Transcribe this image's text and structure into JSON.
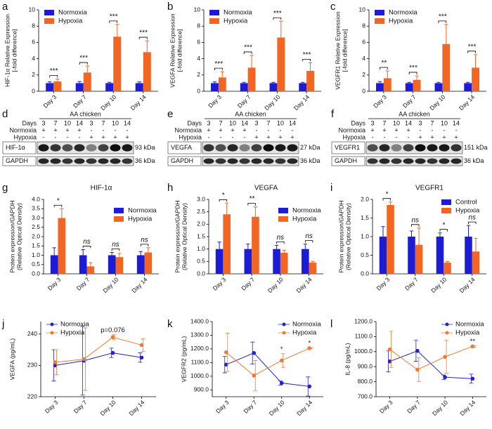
{
  "chart_data": [
    {
      "type": "bar",
      "panel": "a",
      "y_label": [
        "HIF-1α  Relative Expression",
        "[-fold difference]"
      ],
      "categories": [
        "Day 3",
        "Day 7",
        "Day 10",
        "Day 14"
      ],
      "series": [
        {
          "name": "Normoxia",
          "color": "#1c1cd6",
          "values": [
            1,
            1,
            1,
            1
          ],
          "errors": [
            0.15,
            0.2,
            0.1,
            0.15
          ]
        },
        {
          "name": "Hypoxia",
          "color": "#f26522",
          "values": [
            1.2,
            2.3,
            6.7,
            4.8
          ],
          "errors": [
            0.3,
            0.8,
            1.5,
            1.4
          ]
        }
      ],
      "significance": [
        "***",
        "***",
        "***",
        "***"
      ],
      "ylim": [
        0,
        10
      ],
      "yticks": [
        0,
        2,
        4,
        6,
        8,
        10
      ],
      "legend": "upper-left"
    },
    {
      "type": "bar",
      "panel": "b",
      "y_label": [
        "VEGFA  Relative Expression",
        "[-fold difference]"
      ],
      "categories": [
        "Day 3",
        "Day 7",
        "Day 10",
        "Day 14"
      ],
      "series": [
        {
          "name": "Normoxia",
          "color": "#1c1cd6",
          "values": [
            1,
            1,
            1,
            1
          ],
          "errors": [
            0.15,
            0.1,
            0.1,
            0.1
          ]
        },
        {
          "name": "Hypoxia",
          "color": "#f26522",
          "values": [
            1.7,
            2.9,
            6.6,
            2.5
          ],
          "errors": [
            0.7,
            1.5,
            2.0,
            1.0
          ]
        }
      ],
      "significance": [
        "***",
        "***",
        "***",
        "***"
      ],
      "ylim": [
        0,
        10
      ],
      "yticks": [
        0,
        2,
        4,
        6,
        8,
        10
      ],
      "legend": "upper-left"
    },
    {
      "type": "bar",
      "panel": "c",
      "y_label": [
        "VEGFR1  Relative Expression",
        "[-fold difference]"
      ],
      "categories": [
        "Day 3",
        "Day 7",
        "Day 10",
        "Day 14"
      ],
      "series": [
        {
          "name": "Normoxia",
          "color": "#1c1cd6",
          "values": [
            1,
            1,
            1,
            1
          ],
          "errors": [
            0.2,
            0.1,
            0.1,
            0.1
          ]
        },
        {
          "name": "Hypoxia",
          "color": "#f26522",
          "values": [
            1.6,
            1.4,
            5.8,
            2.9
          ],
          "errors": [
            0.9,
            0.5,
            2.4,
            1.6
          ]
        }
      ],
      "significance": [
        "**",
        "***",
        "***",
        "***"
      ],
      "ylim": [
        0,
        10
      ],
      "yticks": [
        0,
        2,
        4,
        6,
        8,
        10
      ],
      "legend": "upper-left"
    },
    {
      "type": "bar",
      "panel": "g",
      "title": "HIF-1α",
      "y_label": [
        "Protein expression/GAPDH",
        "(Relative Optical Density)"
      ],
      "categories": [
        "Day 3",
        "Day 7",
        "Day 10",
        "Day 14"
      ],
      "series": [
        {
          "name": "Normoxia",
          "color": "#1c1cd6",
          "values": [
            1.0,
            1.0,
            1.0,
            1.0
          ],
          "errors": [
            0.4,
            0.3,
            0.15,
            0.2
          ]
        },
        {
          "name": "Hypoxia",
          "color": "#f26522",
          "values": [
            3.0,
            0.4,
            0.9,
            1.15
          ],
          "errors": [
            0.5,
            0.2,
            0.2,
            0.25
          ]
        }
      ],
      "significance": [
        "*",
        "ns",
        "ns",
        "ns"
      ],
      "ylim": [
        0,
        4
      ],
      "yticks": [
        {
          "value": 0,
          "label": "0.0"
        },
        0.5,
        {
          "value": 1,
          "label": "1.0"
        },
        1.5,
        {
          "value": 2,
          "label": "2.0"
        },
        2.5,
        {
          "value": 3,
          "label": "3.0"
        },
        3.5,
        {
          "value": 4,
          "label": "4.0"
        }
      ],
      "legend": "right"
    },
    {
      "type": "bar",
      "panel": "h",
      "title": "VEGFA",
      "y_label": [
        "Protein expression/GAPDH",
        "(Relative Optical Density)"
      ],
      "categories": [
        "Day 3",
        "Day 7",
        "Day 10",
        "Day 14"
      ],
      "series": [
        {
          "name": "Normoxia",
          "color": "#1c1cd6",
          "values": [
            1.0,
            1.0,
            1.0,
            1.0
          ],
          "errors": [
            0.28,
            0.2,
            0.15,
            0.2
          ]
        },
        {
          "name": "Hypoxia",
          "color": "#f26522",
          "values": [
            2.4,
            2.3,
            0.85,
            0.45
          ],
          "errors": [
            0.45,
            0.4,
            0.1,
            0.05
          ]
        }
      ],
      "significance": [
        "*",
        "**",
        "ns",
        "ns"
      ],
      "ylim": [
        0,
        3
      ],
      "yticks": [
        {
          "value": 0,
          "label": "0.0"
        },
        0.5,
        {
          "value": 1,
          "label": "1.0"
        },
        1.5,
        {
          "value": 2,
          "label": "2.0"
        },
        2.5,
        {
          "value": 3,
          "label": "3.0"
        }
      ],
      "legend": "right"
    },
    {
      "type": "bar",
      "panel": "i",
      "title": "VEGFR1",
      "y_label": [
        "Protein expression/GAPDH",
        "(Relative Optical Density)"
      ],
      "categories": [
        "Day 3",
        "Day 7",
        "Day 10",
        "Day 14"
      ],
      "series": [
        {
          "name": "Control",
          "color": "#1c1cd6",
          "values": [
            1.0,
            1.0,
            1.0,
            1.0
          ],
          "errors": [
            0.27,
            0.15,
            0.1,
            0.3
          ]
        },
        {
          "name": "Hypoxia",
          "color": "#f26522",
          "values": [
            1.85,
            0.78,
            0.3,
            0.6
          ],
          "errors": [
            0.08,
            0.45,
            0.03,
            0.35
          ]
        }
      ],
      "significance": [
        "*",
        "ns",
        "*",
        "ns"
      ],
      "ylim": [
        0,
        2
      ],
      "yticks": [
        {
          "value": 0,
          "label": "0.0"
        },
        0.5,
        {
          "value": 1,
          "label": "1.0"
        },
        1.5,
        {
          "value": 2,
          "label": "2.0"
        }
      ],
      "legend": "upper-right"
    },
    {
      "type": "line",
      "panel": "j",
      "y_label": [
        "VEGFA (pg/mL)"
      ],
      "categories": [
        "Day 3",
        "Day 7",
        "Day 10",
        "Day 14"
      ],
      "series": [
        {
          "name": "Normoxia",
          "color": "#2222cc",
          "values": [
            230,
            231.5,
            234,
            232.5
          ],
          "errors": [
            5,
            11,
            1.5,
            1.5
          ]
        },
        {
          "name": "Hypoxia",
          "color": "#f07a30",
          "values": [
            231,
            232,
            239,
            236.5
          ],
          "errors": [
            4,
            10,
            0.8,
            2
          ]
        }
      ],
      "annotations": [
        {
          "text": "p=0.076",
          "category": "Day 10"
        }
      ],
      "ylim": [
        220,
        244
      ],
      "yticks": [
        220,
        230,
        240
      ],
      "legend": "upper-left"
    },
    {
      "type": "line",
      "panel": "k",
      "y_label": [
        "VEGFR2 (pg/mL)"
      ],
      "categories": [
        "Day 3",
        "Day 7",
        "Day 10",
        "Day 14"
      ],
      "series": [
        {
          "name": "Normoxia",
          "color": "#2222cc",
          "values": [
            1085,
            1170,
            950,
            925
          ],
          "errors": [
            60,
            80,
            15,
            70
          ]
        },
        {
          "name": "Hypoxia",
          "color": "#f07a30",
          "values": [
            1175,
            1005,
            1115,
            1205
          ],
          "errors": [
            140,
            110,
            50,
            5
          ]
        }
      ],
      "annotations": [
        {
          "text": "*",
          "category": "Day 10"
        },
        {
          "text": "*",
          "category": "Day 14"
        }
      ],
      "ylim": [
        850,
        1400
      ],
      "yticks": [
        {
          "value": 900,
          "label": "900.0"
        },
        {
          "value": 1000,
          "label": "1000.0"
        },
        {
          "value": 1100,
          "label": "1100.0"
        },
        {
          "value": 1200,
          "label": "1200.0"
        },
        {
          "value": 1300,
          "label": "1300.0"
        },
        {
          "value": 1400,
          "label": "1400.0"
        }
      ],
      "legend": "upper-right"
    },
    {
      "type": "line",
      "panel": "l",
      "y_label": [
        "IL-8 (pg/mL)"
      ],
      "categories": [
        "Day 3",
        "Day 7",
        "Day 10",
        "Day 14"
      ],
      "series": [
        {
          "name": "Normoxia",
          "color": "#2222cc",
          "values": [
            935,
            1005,
            830,
            820
          ],
          "errors": [
            70,
            70,
            15,
            30
          ]
        },
        {
          "name": "Hypoxia",
          "color": "#f07a30",
          "values": [
            1015,
            880,
            965,
            1035
          ],
          "errors": [
            120,
            80,
            110,
            5
          ]
        }
      ],
      "annotations": [
        {
          "text": "**",
          "category": "Day 14"
        }
      ],
      "ylim": [
        700,
        1200
      ],
      "yticks": [
        {
          "value": 700,
          "label": "700.0"
        },
        {
          "value": 800,
          "label": "800.0"
        },
        {
          "value": 900,
          "label": "900.0"
        },
        {
          "value": 1000,
          "label": "1000.0"
        },
        {
          "value": 1100,
          "label": "1100.0"
        },
        {
          "value": 1200,
          "label": "1200.0"
        }
      ],
      "legend": "upper-right"
    }
  ],
  "blots": [
    {
      "panel": "d",
      "title": "AA chicken",
      "row_labels": [
        "Days",
        "Normoxia",
        "Hypoxia"
      ],
      "days": [
        "3",
        "7",
        "10",
        "14",
        "3",
        "7",
        "10",
        "14"
      ],
      "normoxia": [
        "+",
        "+",
        "+",
        "+",
        "-",
        "-",
        "-",
        "-"
      ],
      "hypoxia": [
        "-",
        "-",
        "-",
        "-",
        "+",
        "+",
        "+",
        "+"
      ],
      "proteins": [
        {
          "name": "HIF-1α",
          "size": "93 kDa"
        },
        {
          "name": "GAPDH",
          "size": "36 kDa"
        }
      ]
    },
    {
      "panel": "e",
      "title": "AA chicken",
      "row_labels": [
        "Days",
        "Normoxia",
        "Hypoxia"
      ],
      "days": [
        "3",
        "7",
        "10",
        "14",
        "3",
        "7",
        "10",
        "14"
      ],
      "normoxia": [
        "+",
        "+",
        "+",
        "+",
        "-",
        "-",
        "-",
        "-"
      ],
      "hypoxia": [
        "-",
        "-",
        "-",
        "-",
        "+",
        "+",
        "+",
        "+"
      ],
      "proteins": [
        {
          "name": "VEGFA",
          "size": "27 kDa"
        },
        {
          "name": "GAPDH",
          "size": "36 kDa"
        }
      ]
    },
    {
      "panel": "f",
      "title": "AA chicken",
      "row_labels": [
        "Days",
        "Normoxia",
        "Hypoxia"
      ],
      "days": [
        "3",
        "7",
        "10",
        "14",
        "3",
        "7",
        "10",
        "14"
      ],
      "normoxia": [
        "+",
        "+",
        "+",
        "+",
        "-",
        "-",
        "-",
        "-"
      ],
      "hypoxia": [
        "-",
        "-",
        "-",
        "-",
        "+",
        "+",
        "+",
        "+"
      ],
      "proteins": [
        {
          "name": "VEGFR1",
          "size": "151 kDa"
        },
        {
          "name": "GAPDH",
          "size": "36 kDa"
        }
      ]
    }
  ]
}
